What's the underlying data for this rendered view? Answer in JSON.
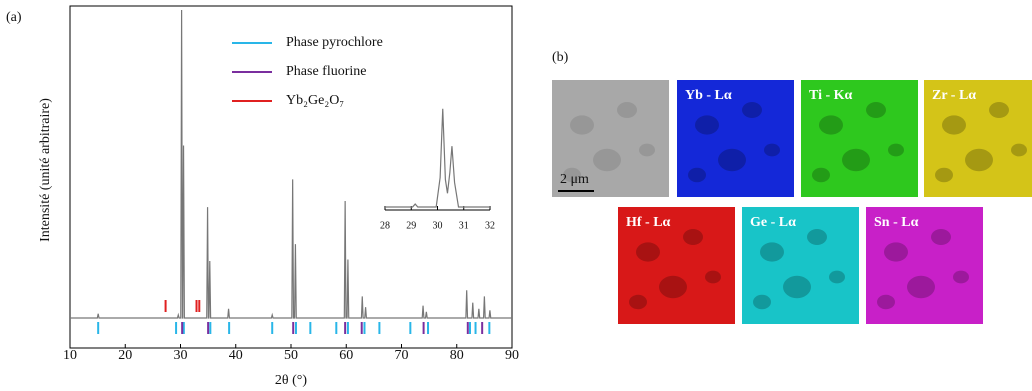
{
  "panel_a": "(a)",
  "panel_b": "(b)",
  "chart_data": [
    {
      "type": "line",
      "xlabel": "2θ (°)",
      "ylabel": "Intensité (unité arbitraire)",
      "xlim": [
        10,
        90
      ],
      "xticks": [
        10,
        20,
        30,
        40,
        50,
        60,
        70,
        80,
        90
      ],
      "ylim": [
        -11,
        100
      ],
      "color": "#777777",
      "x": [
        10,
        14.95,
        15.1,
        15.25,
        29.45,
        29.6,
        29.75,
        30.05,
        30.2,
        30.35,
        30.4,
        30.55,
        30.7,
        34.75,
        34.9,
        35.05,
        35.15,
        35.3,
        35.45,
        38.55,
        38.7,
        38.85,
        46.45,
        46.6,
        46.75,
        50.15,
        50.3,
        50.45,
        50.65,
        50.8,
        50.95,
        59.65,
        59.8,
        59.95,
        60.15,
        60.3,
        60.45,
        62.75,
        62.9,
        63.05,
        63.35,
        63.5,
        63.65,
        73.75,
        73.9,
        74.05,
        74.35,
        74.5,
        74.65,
        81.65,
        81.8,
        81.95,
        82.75,
        82.9,
        83.05,
        83.85,
        84,
        84.15,
        84.85,
        85,
        85.15,
        85.85,
        86,
        86.15,
        90
      ],
      "values": [
        0,
        0,
        1.4,
        0,
        0,
        1,
        0,
        0,
        100,
        0,
        0,
        56,
        0,
        0,
        36,
        0,
        0,
        18.5,
        0,
        0,
        3,
        0,
        0,
        1,
        0,
        0,
        45,
        0,
        0,
        24,
        0,
        0,
        38,
        0,
        0,
        19,
        0,
        0,
        7,
        0,
        0,
        3.5,
        0,
        0,
        4,
        0,
        0,
        2,
        0,
        0,
        9,
        0,
        0,
        5,
        0,
        0,
        3,
        0,
        0,
        7,
        0,
        0,
        2.5,
        0,
        0
      ],
      "markers": [
        {
          "name": "Phase pyrochlore",
          "color": "#29b6e8",
          "x": [
            15.1,
            29.2,
            30.6,
            35.4,
            38.8,
            46.6,
            50.9,
            53.5,
            58.2,
            60.3,
            63.3,
            66,
            71.6,
            74.8,
            82.4,
            83.4,
            85.9
          ]
        },
        {
          "name": "Phase fluorine",
          "color": "#7a2e9e",
          "x": [
            30.3,
            35,
            50.4,
            59.8,
            62.8,
            74,
            82,
            84.6
          ]
        },
        {
          "name": "Yb₂Ge₂O₇",
          "color": "#e02020",
          "x": [
            27.3,
            32.9,
            33.4
          ]
        }
      ]
    },
    {
      "type": "line",
      "xlim": [
        28,
        32
      ],
      "xticks": [
        28,
        29,
        30,
        31,
        32
      ],
      "ylim": [
        -3,
        110
      ],
      "color": "#777777",
      "x": [
        28,
        29.05,
        29.15,
        29.25,
        29.95,
        30.1,
        30.2,
        30.3,
        30.38,
        30.47,
        30.55,
        30.65,
        30.8,
        32
      ],
      "values": [
        0,
        0,
        3,
        0,
        0,
        30,
        100,
        28,
        14,
        35,
        62,
        25,
        0,
        0
      ]
    }
  ],
  "maps": [
    {
      "color": "#a8a8a8",
      "scale_bar": "2 μm"
    },
    {
      "label": "Yb - Lα",
      "color": "#1428d8"
    },
    {
      "label": "Ti - Kα",
      "color": "#2ec81e"
    },
    {
      "label": "Zr - Lα",
      "color": "#d4c418"
    },
    {
      "label": "Hf - Lα",
      "color": "#d81818"
    },
    {
      "label": "Ge - Lα",
      "color": "#18c4c8"
    },
    {
      "label": "Sn - Lα",
      "color": "#c820c8"
    }
  ]
}
